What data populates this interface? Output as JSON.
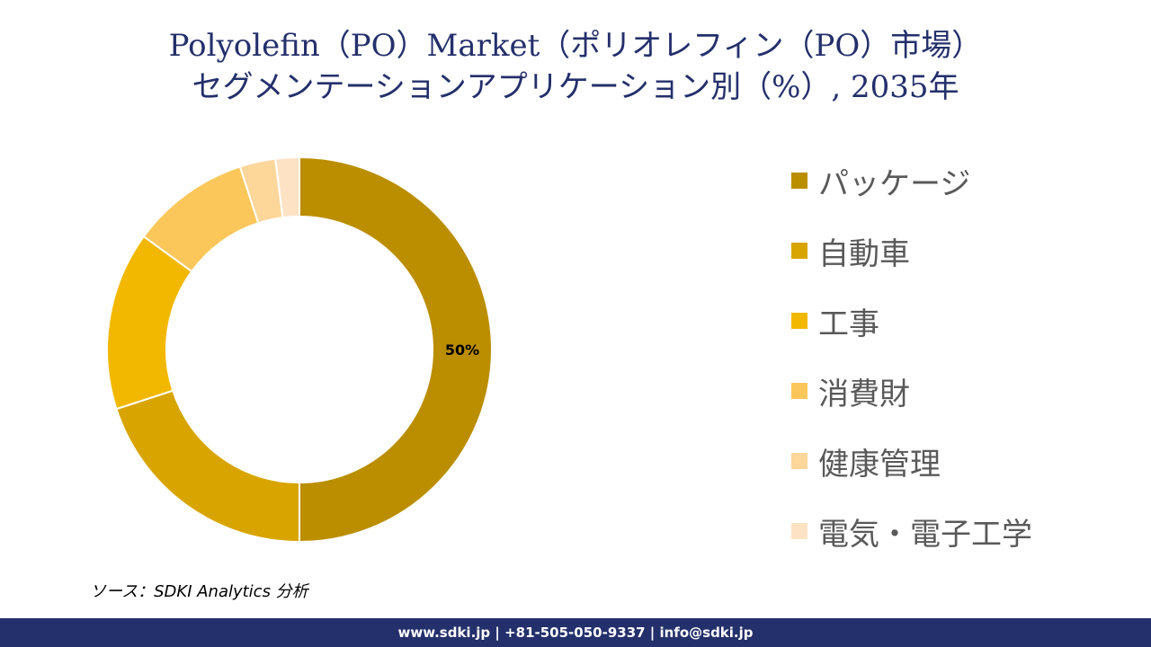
{
  "title": {
    "line1": "Polyolefin（PO）Market（ポリオレフィン（PO）市場）",
    "line2": "セグメンテーションアプリケーション別（%）, 2035年"
  },
  "chart_data": {
    "type": "pie",
    "categories": [
      "パッケージ",
      "自動車",
      "工事",
      "消費財",
      "健康管理",
      "電気・電子工学"
    ],
    "values": [
      50,
      20,
      15,
      10,
      3,
      2
    ],
    "data_labels": [
      "50%",
      "",
      "",
      "",
      "",
      ""
    ],
    "colors": [
      "#bb8e00",
      "#d8a500",
      "#f2b800",
      "#fcc75a",
      "#fdd69a",
      "#fde3c4"
    ],
    "donut": true,
    "legend_position": "right"
  },
  "source": "ソース：SDKI Analytics 分析",
  "footer": "www.sdki.jp | +81-505-050-9337 | info@sdki.jp"
}
